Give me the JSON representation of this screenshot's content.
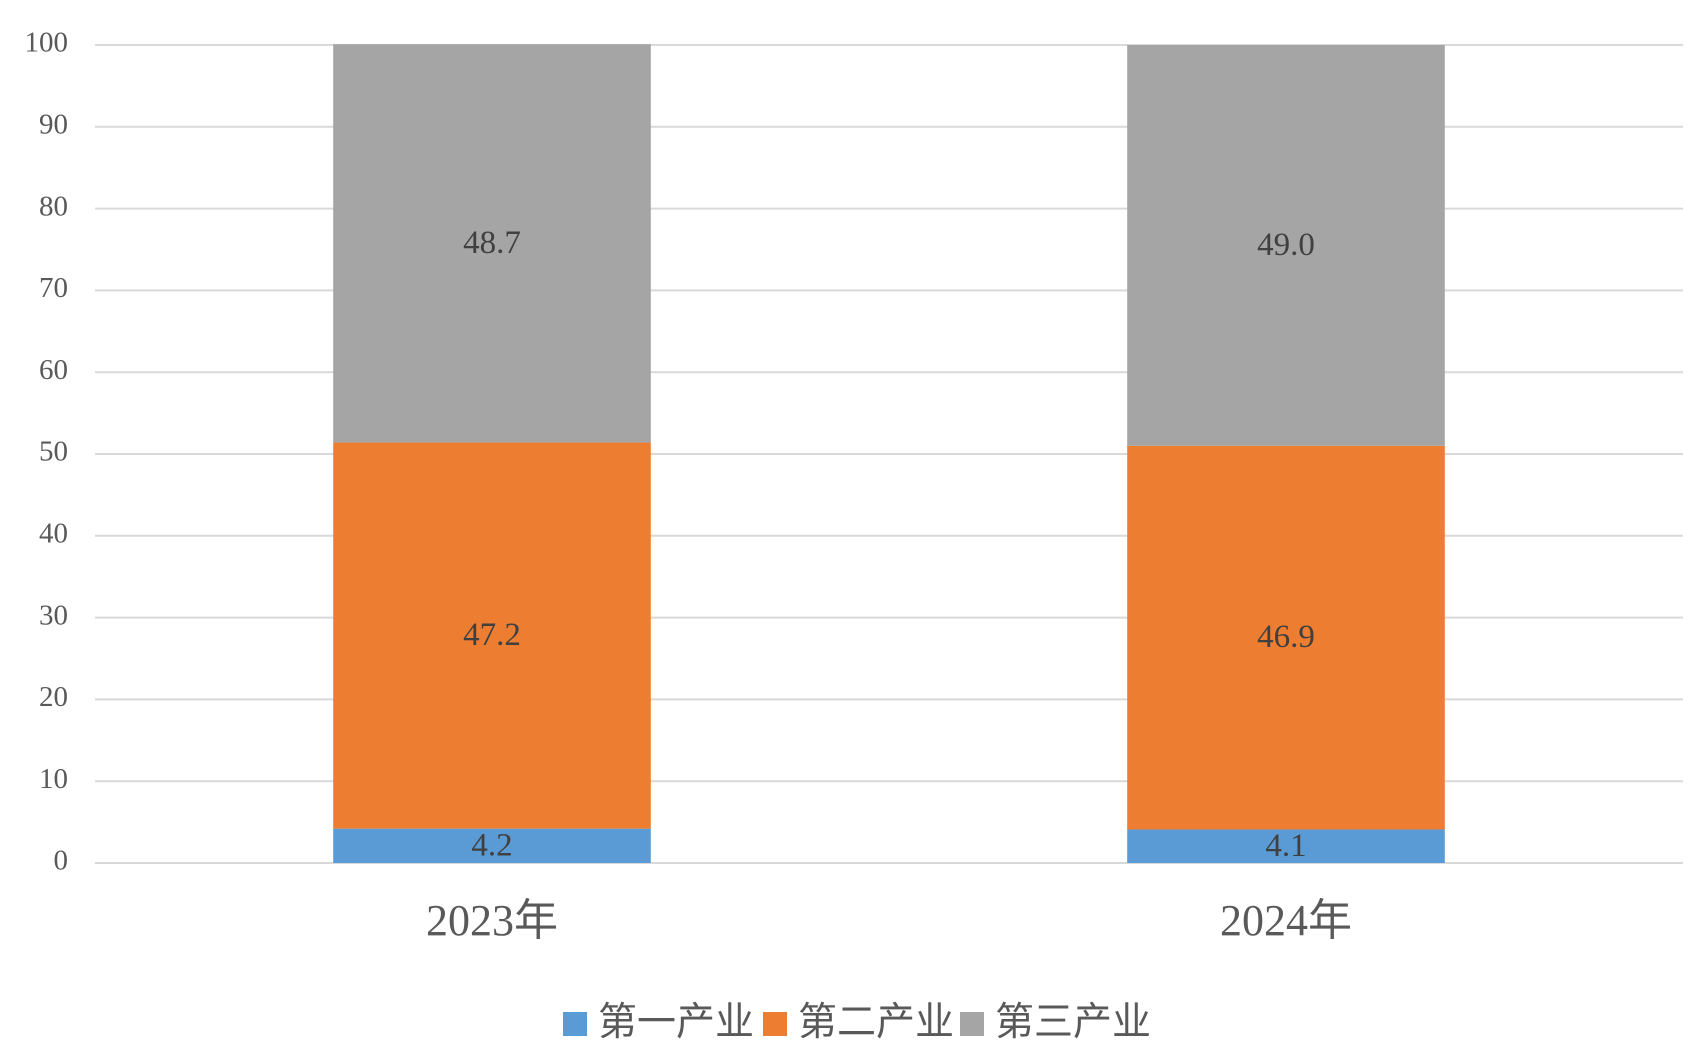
{
  "chart_data": {
    "type": "stacked_bar",
    "categories": [
      "2023年",
      "2024年"
    ],
    "series": [
      {
        "name": "第一产业",
        "color": "#5b9bd5",
        "values": [
          4.2,
          4.1
        ]
      },
      {
        "name": "第二产业",
        "color": "#ed7d31",
        "values": [
          47.2,
          46.9
        ]
      },
      {
        "name": "第三产业",
        "color": "#a5a5a5",
        "values": [
          48.7,
          49.0
        ],
        "value_labels": [
          "48.7",
          "49.0"
        ]
      }
    ],
    "ylim": [
      0,
      100
    ],
    "yticks": [
      0,
      10,
      20,
      30,
      40,
      50,
      60,
      70,
      80,
      90,
      100
    ],
    "grid": true,
    "legend": "bottom"
  }
}
